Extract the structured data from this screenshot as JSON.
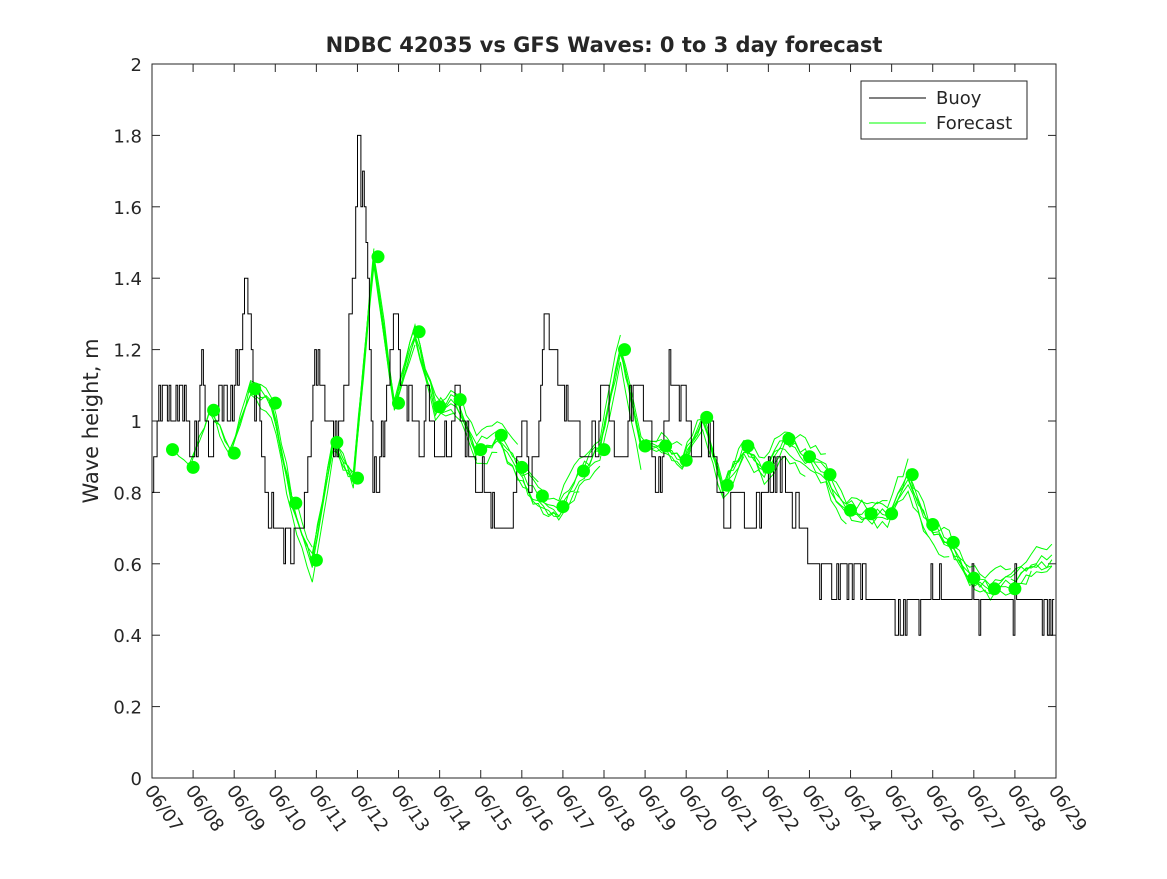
{
  "chart_data": {
    "type": "line",
    "title": "NDBC 42035 vs GFS Waves: 0 to 3 day forecast",
    "xlabel": "",
    "ylabel": "Wave height, m",
    "xlim": [
      "06/07",
      "06/29"
    ],
    "ylim": [
      0,
      2
    ],
    "x_ticks": [
      "06/07",
      "06/08",
      "06/09",
      "06/10",
      "06/11",
      "06/12",
      "06/13",
      "06/14",
      "06/15",
      "06/16",
      "06/17",
      "06/18",
      "06/19",
      "06/20",
      "06/21",
      "06/22",
      "06/23",
      "06/24",
      "06/25",
      "06/26",
      "06/27",
      "06/28",
      "06/29"
    ],
    "y_ticks": [
      0,
      0.2,
      0.4,
      0.6,
      0.8,
      1,
      1.2,
      1.4,
      1.6,
      1.8,
      2
    ],
    "y_tick_labels": [
      "0",
      "0.2",
      "0.4",
      "0.6",
      "0.8",
      "1",
      "1.2",
      "1.4",
      "1.6",
      "1.8",
      "2"
    ],
    "legend": {
      "placement": "top-right",
      "entries": [
        "Buoy",
        "Forecast"
      ]
    },
    "colors": {
      "buoy": "#000000",
      "forecast": "#00ff00",
      "axis": "#262626"
    },
    "buoy_anchor": {
      "day": [
        0,
        0.1,
        0.3,
        0.5,
        0.7,
        0.9,
        1.1,
        1.2,
        1.35,
        1.5,
        1.6,
        1.75,
        1.9,
        2.1,
        2.3,
        2.5,
        2.6,
        2.65,
        2.75,
        2.9,
        3.2,
        3.4,
        3.6,
        3.8,
        3.95,
        4.1,
        4.3,
        4.5,
        4.7,
        4.9,
        5.0,
        5.2,
        5.35,
        5.5,
        5.7,
        5.9,
        6.0,
        6.15,
        6.3,
        6.45,
        6.55,
        6.65,
        6.8,
        7.0,
        7.2,
        7.3,
        7.45,
        7.6,
        7.8,
        8.0,
        8.2,
        8.4,
        8.6,
        8.8,
        9.0,
        9.2,
        9.4,
        9.6,
        9.8,
        10.0,
        10.2,
        10.4,
        10.6,
        10.8,
        11.0,
        11.2,
        11.4,
        11.6,
        11.8,
        12.0,
        12.2,
        12.4,
        12.6,
        12.8,
        13.0,
        13.2,
        13.4,
        13.6,
        13.8,
        14.0,
        14.2,
        14.4,
        14.6,
        14.8,
        15.0,
        15.2,
        15.4,
        15.6,
        15.8,
        16.0,
        16.2,
        16.4,
        16.6,
        16.8,
        17.0,
        17.2,
        17.4,
        17.6,
        17.8,
        18.0,
        18.2,
        18.4,
        18.6,
        18.8,
        19.0,
        19.2,
        19.4,
        19.6,
        19.8,
        20.0,
        20.2,
        20.4,
        20.6,
        20.8,
        21.0,
        21.2,
        21.4,
        21.6,
        21.8,
        22.0
      ],
      "value": [
        0.8,
        1.0,
        1.1,
        1.0,
        1.1,
        1.0,
        0.9,
        1.2,
        0.9,
        1.0,
        1.0,
        1.1,
        1.0,
        1.2,
        1.4,
        1.0,
        1.1,
        0.9,
        0.8,
        0.75,
        0.7,
        0.6,
        0.7,
        0.9,
        1.2,
        1.1,
        1.0,
        0.9,
        1.1,
        1.4,
        1.8,
        1.5,
        0.9,
        0.8,
        1.1,
        1.3,
        1.2,
        1.0,
        1.1,
        1.0,
        0.9,
        1.1,
        1.0,
        0.9,
        0.9,
        1.0,
        1.1,
        1.0,
        0.85,
        0.85,
        0.8,
        0.7,
        0.65,
        0.8,
        1.0,
        0.85,
        1.0,
        1.3,
        1.2,
        1.1,
        1.0,
        1.0,
        0.9,
        0.95,
        1.1,
        1.0,
        0.9,
        1.0,
        1.1,
        1.0,
        0.9,
        0.85,
        1.2,
        1.1,
        1.0,
        0.9,
        1.0,
        0.95,
        0.8,
        0.7,
        0.8,
        0.75,
        0.7,
        0.75,
        0.8,
        0.9,
        0.8,
        0.75,
        0.7,
        0.6,
        0.55,
        0.6,
        0.5,
        0.55,
        0.55,
        0.6,
        0.55,
        0.5,
        0.5,
        0.45,
        0.4,
        0.5,
        0.5,
        0.5,
        0.55,
        0.5,
        0.5,
        0.5,
        0.5,
        0.5,
        0.5,
        0.5,
        0.5,
        0.5,
        0.5,
        0.5,
        0.5,
        0.5,
        0.5,
        0.5
      ]
    },
    "forecast_anchor": {
      "day": [
        0.4,
        0.9,
        1.4,
        1.9,
        2.4,
        2.9,
        3.4,
        3.9,
        4.4,
        4.9,
        5.4,
        5.9,
        6.4,
        6.9,
        7.4,
        7.9,
        8.4,
        8.9,
        9.4,
        9.9,
        10.4,
        10.9,
        11.4,
        11.9,
        12.4,
        12.9,
        13.4,
        13.9,
        14.4,
        14.9,
        15.4,
        15.9,
        16.4,
        16.9,
        17.4,
        17.9,
        18.4,
        18.9,
        19.4,
        19.9,
        20.4,
        20.9,
        21.4,
        21.9
      ],
      "value": [
        0.92,
        0.87,
        1.03,
        0.91,
        1.09,
        1.05,
        0.77,
        0.61,
        0.94,
        0.84,
        1.46,
        1.05,
        1.25,
        1.04,
        1.06,
        0.92,
        0.96,
        0.87,
        0.79,
        0.76,
        0.86,
        0.92,
        1.2,
        0.93,
        0.93,
        0.89,
        1.01,
        0.82,
        0.93,
        0.87,
        0.95,
        0.9,
        0.85,
        0.75,
        0.74,
        0.74,
        0.85,
        0.71,
        0.66,
        0.56,
        0.53,
        0.55,
        0.6,
        0.62
      ]
    },
    "forecast_points": {
      "day": [
        0.5,
        1.0,
        1.5,
        2.0,
        2.5,
        3.0,
        3.5,
        4.0,
        4.5,
        5.0,
        5.5,
        6.0,
        6.5,
        7.0,
        7.5,
        8.0,
        8.5,
        9.0,
        9.5,
        10.0,
        10.5,
        11.0,
        11.5,
        12.0,
        12.5,
        13.0,
        13.5,
        14.0,
        14.5,
        15.0,
        15.5,
        16.0,
        16.5,
        17.0,
        17.5,
        18.0,
        18.5,
        19.0,
        19.5,
        20.0,
        20.5,
        21.0
      ],
      "value": [
        0.92,
        0.87,
        1.03,
        0.91,
        1.09,
        1.05,
        0.77,
        0.61,
        0.94,
        0.84,
        1.46,
        1.05,
        1.25,
        1.04,
        1.06,
        0.92,
        0.96,
        0.87,
        0.79,
        0.76,
        0.86,
        0.92,
        1.2,
        0.93,
        0.93,
        0.89,
        1.01,
        0.82,
        0.93,
        0.87,
        0.95,
        0.9,
        0.85,
        0.75,
        0.74,
        0.74,
        0.85,
        0.71,
        0.66,
        0.56,
        0.53,
        0.53
      ]
    }
  }
}
